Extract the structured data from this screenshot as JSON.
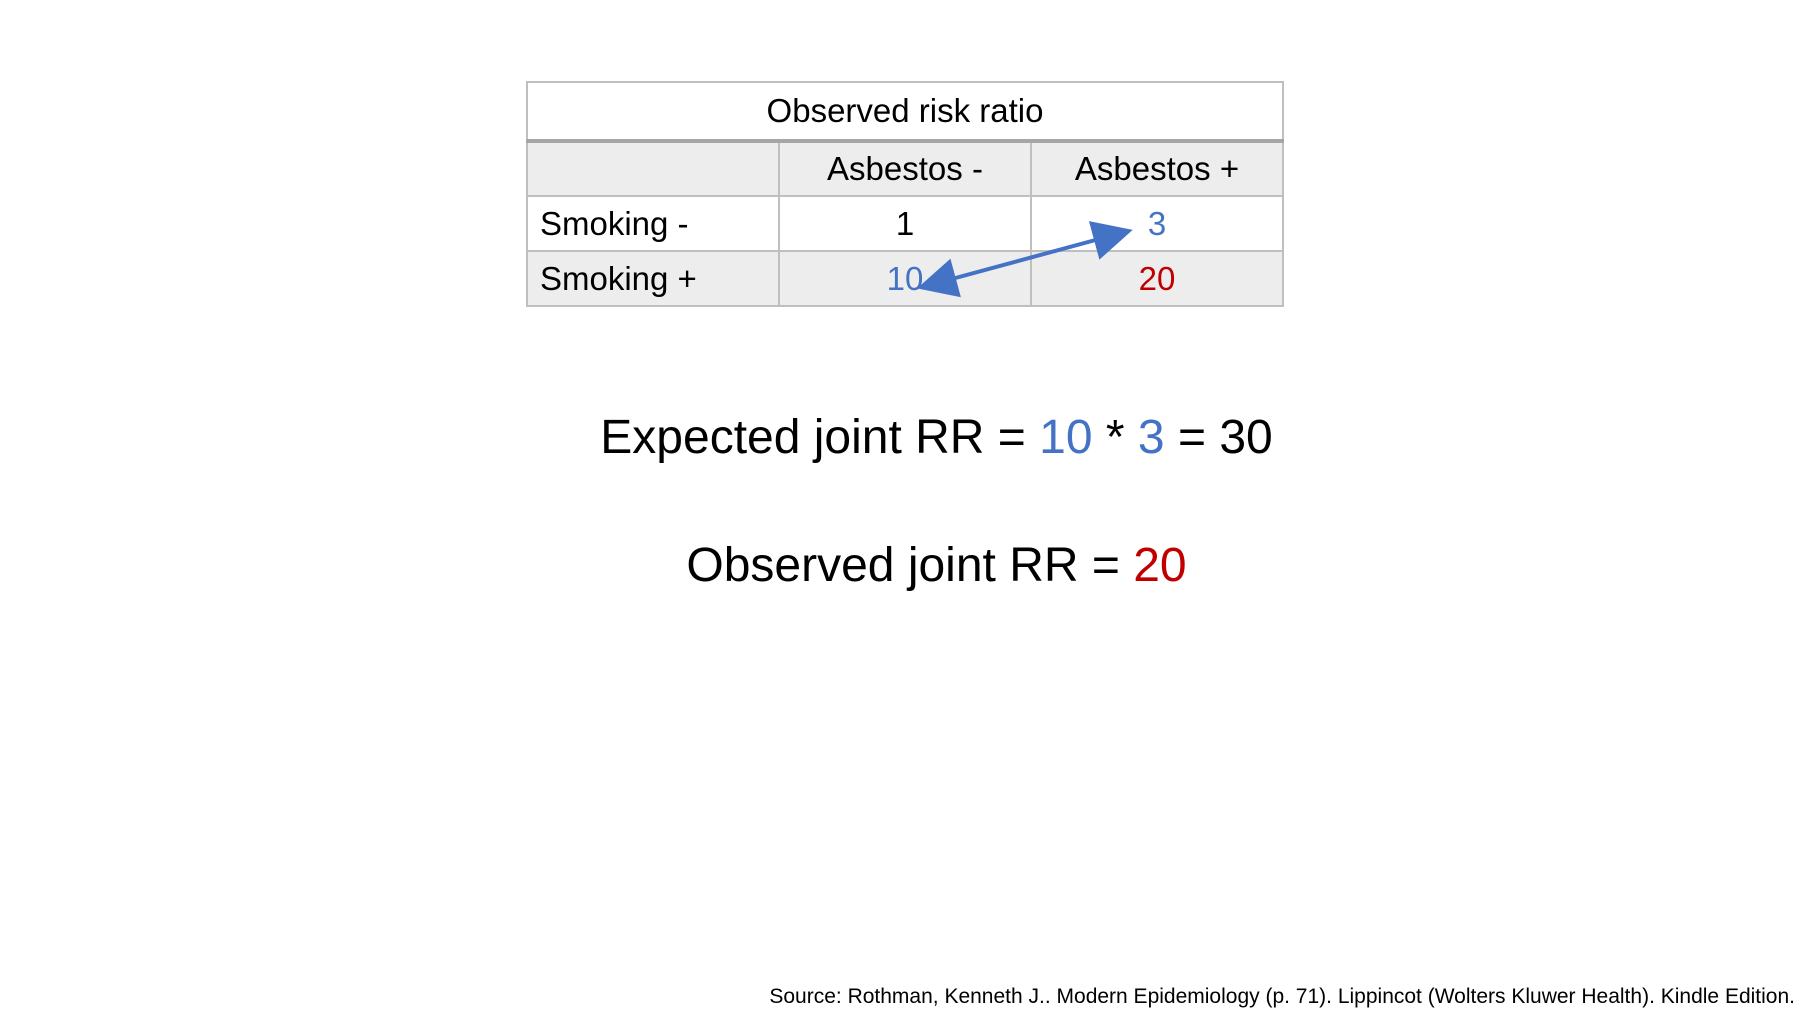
{
  "table": {
    "title": "Observed risk ratio",
    "column_headers": [
      "",
      "Asbestos -",
      "Asbestos +"
    ],
    "rows": [
      {
        "label": "Smoking -",
        "values": [
          "1",
          "3"
        ]
      },
      {
        "label": "Smoking +",
        "values": [
          "10",
          "20"
        ]
      }
    ]
  },
  "expected": {
    "label": "Expected joint RR = ",
    "factor1": "10",
    "operator": " * ",
    "factor2": "3",
    "equals": " = ",
    "result": "30"
  },
  "observed": {
    "label": "Observed joint RR = ",
    "value": "20"
  },
  "source": "Source: Rothman, Kenneth J.. Modern Epidemiology (p. 71). Lippincot (Wolters Kluwer Health). Kindle Edition.",
  "colors": {
    "blue": "#4472c4",
    "red": "#c00000",
    "header_grey": "#ededed",
    "border": "#bfbfbf"
  },
  "icons": {
    "arrow": "double-headed-arrow"
  }
}
